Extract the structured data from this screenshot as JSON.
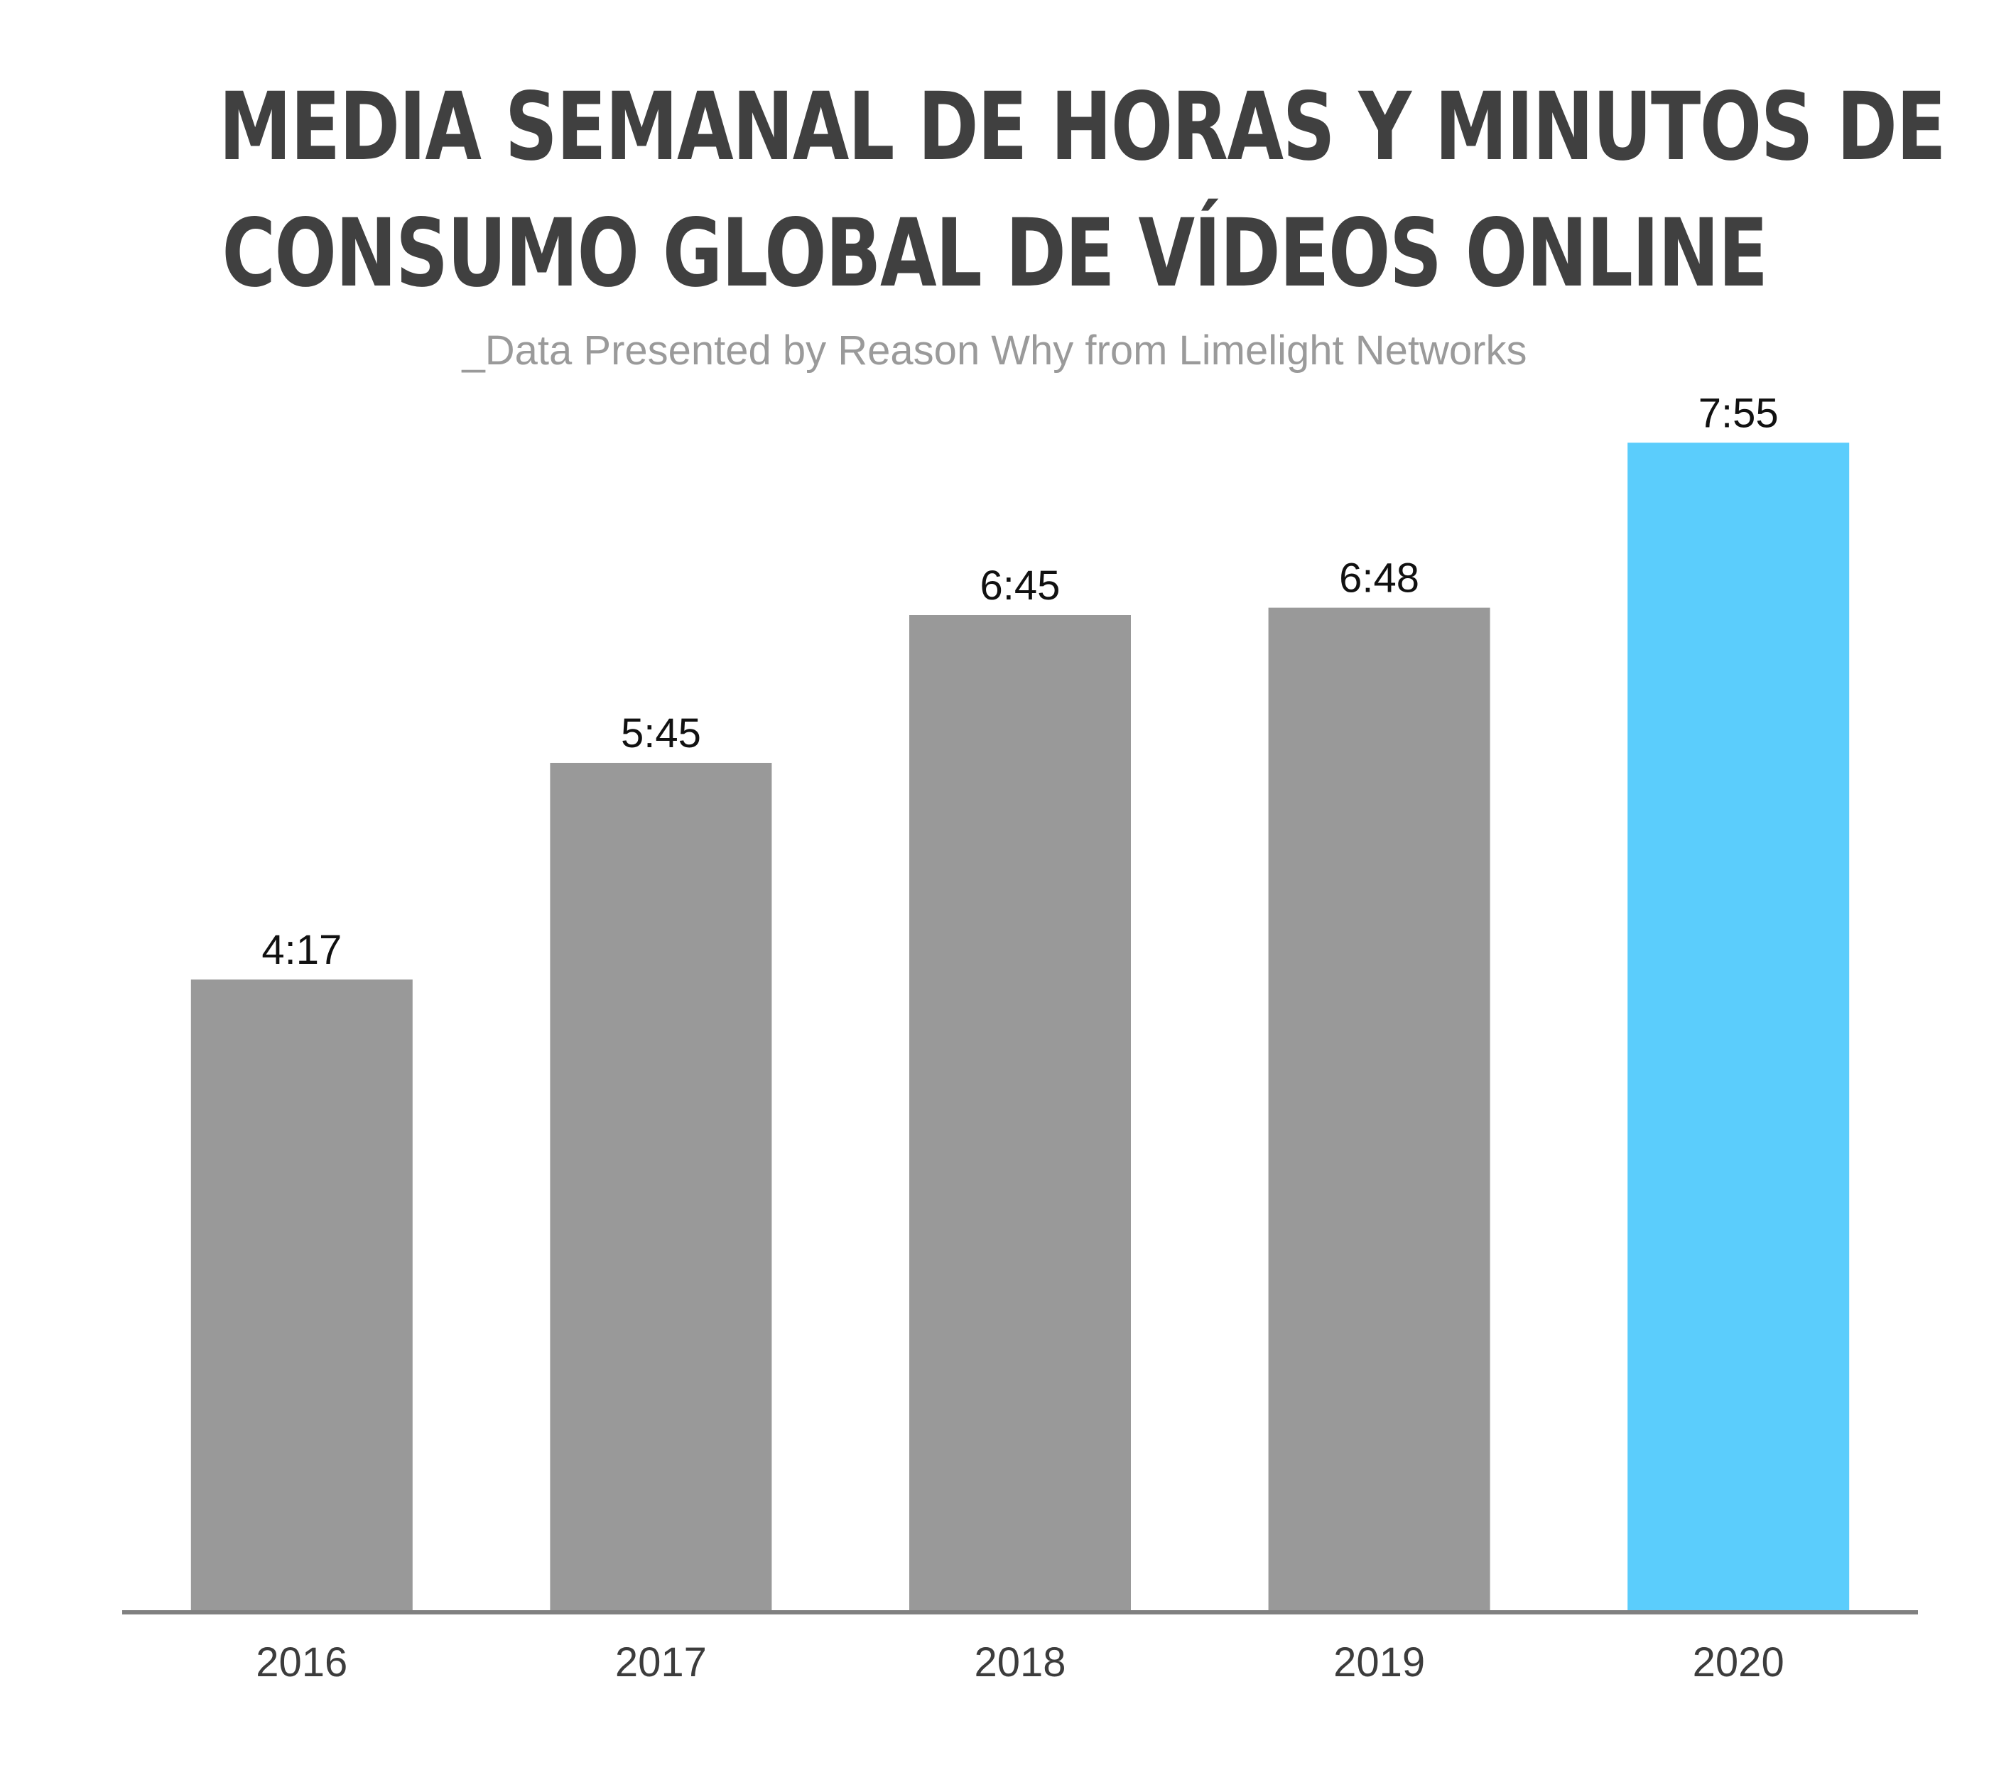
{
  "title_lines": [
    "MEDIA SEMANAL DE HORAS Y MINUTOS DE",
    "CONSUMO GLOBAL DE VÍDEOS ONLINE"
  ],
  "subtitle": "_Data Presented by Reason Why from Limelight Networks",
  "colors": {
    "default_bar": "#999999",
    "highlight_bar": "#5BCDFC",
    "axis": "#808080",
    "value_label": "#111111",
    "tick_label": "#3c3c3c"
  },
  "chart_data": {
    "type": "bar",
    "title": "MEDIA SEMANAL DE HORAS Y MINUTOS DE CONSUMO GLOBAL DE VÍDEOS ONLINE",
    "subtitle": "_Data Presented by Reason Why from Limelight Networks",
    "categories": [
      "2016",
      "2017",
      "2018",
      "2019",
      "2020"
    ],
    "values": [
      4.283,
      5.75,
      6.75,
      6.8,
      7.917
    ],
    "value_labels": [
      "4:17",
      "5:45",
      "6:45",
      "6:48",
      "7:55"
    ],
    "highlight_index": 4,
    "xlabel": "",
    "ylabel": "",
    "ylim": [
      0,
      10
    ],
    "grid": false,
    "legend": "none"
  }
}
